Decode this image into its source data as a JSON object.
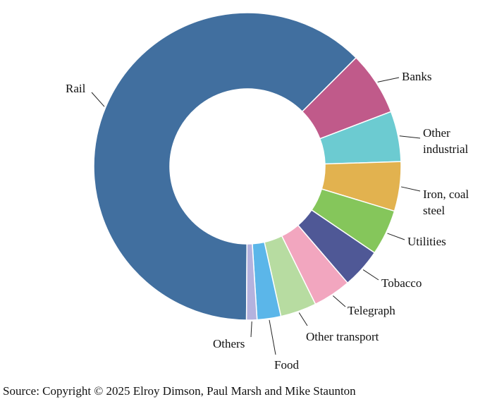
{
  "chart_data": {
    "type": "donut",
    "categories": [
      "Rail",
      "Banks",
      "Other industrial",
      "Iron, coal steel",
      "Utilities",
      "Tobacco",
      "Telegraph",
      "Other transport",
      "Food",
      "Others"
    ],
    "values": [
      62.4,
      6.7,
      5.3,
      5.2,
      4.8,
      4.2,
      4.0,
      3.8,
      2.5,
      1.1
    ],
    "colors": [
      "#416f9f",
      "#c05a8a",
      "#6ccbd1",
      "#e2b24f",
      "#85c65b",
      "#4f5896",
      "#f2a6bf",
      "#b7dca1",
      "#5bb6e9",
      "#b4b2de"
    ],
    "source": "Source: Copyright © 2025 Elroy Dimson, Paul Marsh and Mike Staunton"
  }
}
